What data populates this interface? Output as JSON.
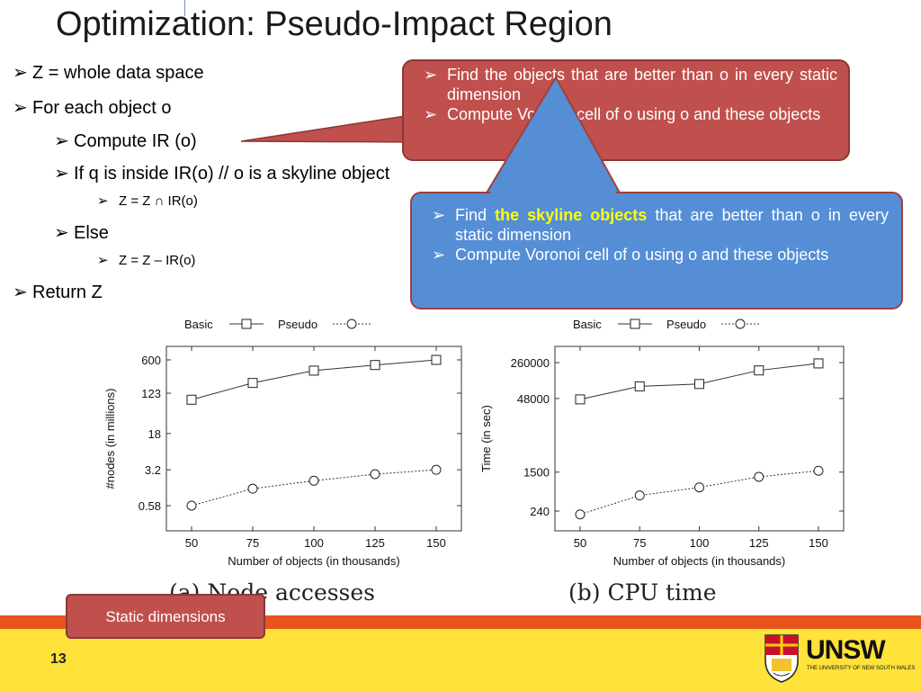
{
  "slide": {
    "title": "Optimization: Pseudo-Impact Region",
    "bullet_glyph": "➢",
    "bullets": [
      "Z = whole data space",
      "For each object o",
      "Compute IR (o)",
      "If q is inside IR(o) // o is a skyline object",
      "Z = Z ∩ IR(o)",
      "Else",
      "Z = Z – IR(o)",
      "Return Z"
    ],
    "red_callout": [
      "Find the objects that are better than o in every static dimension",
      "Compute Voronoi cell of o using o and these objects"
    ],
    "blue_callout": {
      "first_pre": "Find ",
      "first_highlight": "the skyline objects",
      "first_post": " that are better than o in every static dimension",
      "second": "Compute Voronoi cell of o using o and these objects"
    },
    "static_box": "Static dimensions",
    "page_number": "13",
    "logo_text": "UNSW",
    "logo_subtext": "THE UNIVERSITY OF NEW SOUTH WALES",
    "colors": {
      "red_callout": "#c0504d",
      "blue_callout": "#558ed5",
      "bottom_bar": "#ffe23a",
      "bottom_strip": "#e8541c"
    }
  },
  "chart_data": [
    {
      "type": "line",
      "caption": "(a) Node accesses",
      "xlabel": "Number of objects (in thousands)",
      "ylabel": "#nodes (in millions)",
      "yscale": "log",
      "x": [
        50,
        75,
        100,
        125,
        150
      ],
      "xticks": [
        "50",
        "75",
        "100",
        "125",
        "150"
      ],
      "yticks": [
        0.58,
        3.2,
        18,
        123,
        600
      ],
      "ytick_labels": [
        "0.58",
        "3.2",
        "18",
        "123",
        "600"
      ],
      "legend": "top",
      "series": [
        {
          "name": "Basic",
          "marker": "square",
          "values": [
            90,
            200,
            360,
            470,
            600
          ]
        },
        {
          "name": "Pseudo",
          "marker": "circle",
          "values": [
            0.58,
            1.3,
            1.9,
            2.6,
            3.2
          ]
        }
      ]
    },
    {
      "type": "line",
      "caption": "(b) CPU time",
      "xlabel": "Number of objects (in thousands)",
      "ylabel": "Time (in sec)",
      "yscale": "log",
      "x": [
        50,
        75,
        100,
        125,
        150
      ],
      "xticks": [
        "50",
        "75",
        "100",
        "125",
        "150"
      ],
      "yticks": [
        240,
        1500,
        48000,
        260000
      ],
      "ytick_labels": [
        "240",
        "1500",
        "48000",
        "260000"
      ],
      "legend": "top",
      "series": [
        {
          "name": "Basic",
          "marker": "square",
          "values": [
            46000,
            85000,
            95000,
            180000,
            250000
          ]
        },
        {
          "name": "Pseudo",
          "marker": "circle",
          "values": [
            205,
            500,
            730,
            1200,
            1600
          ]
        }
      ]
    }
  ]
}
